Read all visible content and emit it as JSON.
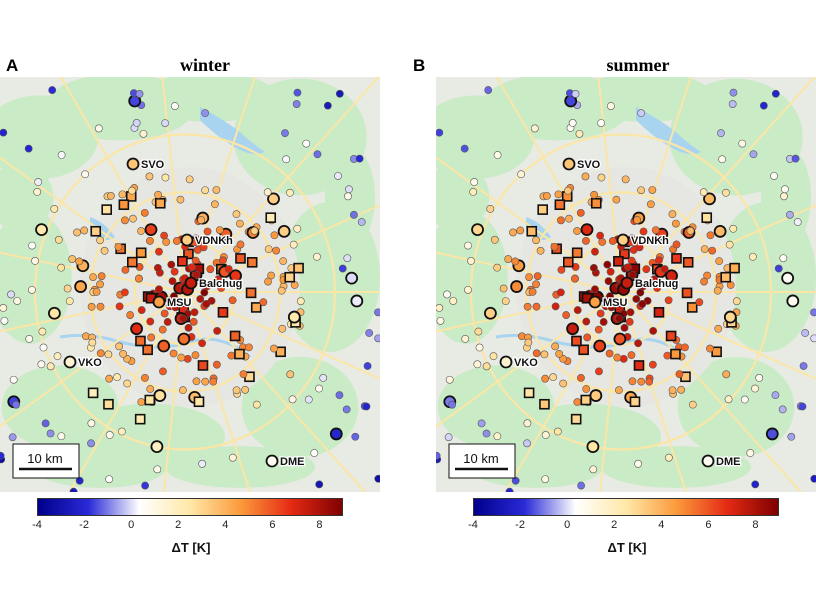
{
  "panels": [
    {
      "letter": "A",
      "title": "winter"
    },
    {
      "letter": "B",
      "title": "summer"
    }
  ],
  "labels": {
    "airport_svo": "SVO",
    "vdnkh": "VDNKh",
    "balchug": "Balchug",
    "msu": "MSU",
    "airport_vko": "VKO",
    "airport_dme": "DME"
  },
  "scale_bar": "10 km",
  "colorbar": {
    "label": "ΔT [K]",
    "ticks": [
      "-4",
      "-2",
      "0",
      "2",
      "4",
      "6",
      "8"
    ],
    "range": [
      -4,
      9
    ],
    "colors": [
      "#00008b",
      "#2a2ad8",
      "#ffffff",
      "#ffe8a8",
      "#fb9a3c",
      "#e52a14",
      "#7f0000"
    ]
  },
  "style": {
    "map_land": "#e8eae4",
    "map_green": "#c9ebc6",
    "map_water": "#a9d4ef",
    "map_road": "#fbe6a6"
  }
}
